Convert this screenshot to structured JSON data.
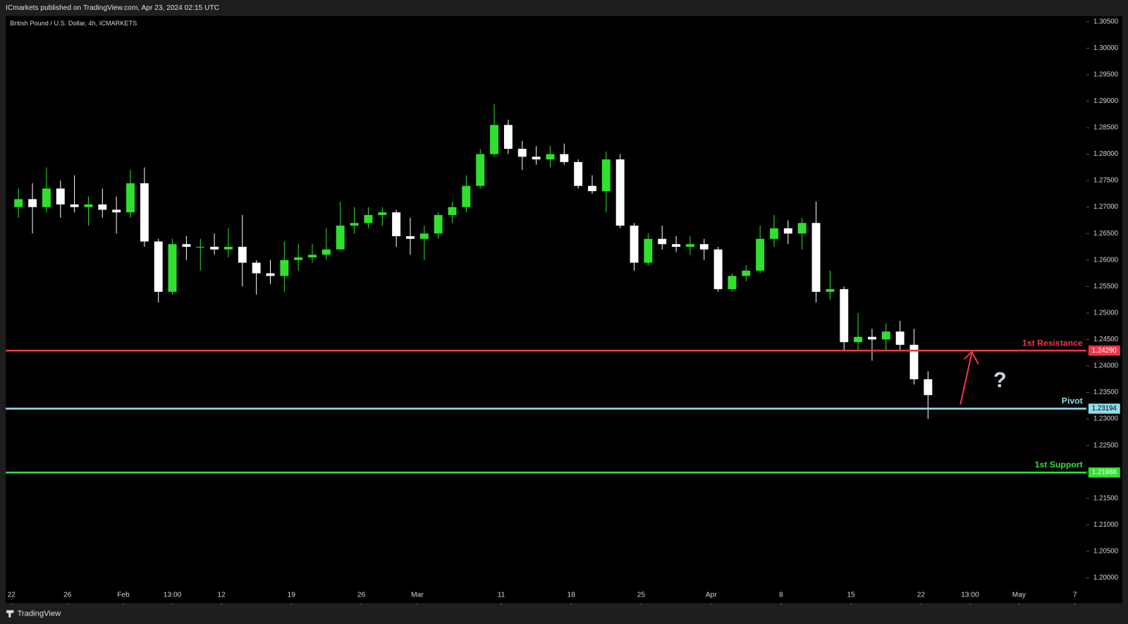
{
  "header": {
    "published": "ICmarkets published on TradingView.com, Apr 23, 2024 02:15 UTC",
    "brand": "TradingView"
  },
  "chart_data": {
    "type": "candlestick",
    "title": "British Pound / U.S. Dollar, 4h, ICMARKETS",
    "up_color": "#2fe02f",
    "down_color": "#ffffff",
    "x": [
      0,
      1,
      2,
      3,
      4,
      5,
      6,
      7,
      8,
      9,
      10,
      11,
      12,
      13,
      14,
      15,
      16,
      17,
      18,
      19,
      20,
      21,
      22,
      23,
      24,
      25,
      26,
      27,
      28,
      29,
      30,
      31,
      32,
      33,
      34,
      35,
      36,
      37,
      38,
      39,
      40,
      41,
      42,
      43,
      44,
      45,
      46,
      47,
      48,
      49,
      50,
      51,
      52,
      53,
      54,
      55,
      56,
      57,
      58,
      59,
      60,
      61,
      62,
      63,
      64,
      65
    ],
    "open": [
      1.27,
      1.2715,
      1.27,
      1.2735,
      1.2705,
      1.27,
      1.2705,
      1.2695,
      1.269,
      1.2745,
      1.2635,
      1.254,
      1.263,
      1.2625,
      1.2625,
      1.262,
      1.2625,
      1.2595,
      1.2575,
      1.257,
      1.26,
      1.2605,
      1.261,
      1.262,
      1.2665,
      1.267,
      1.2685,
      1.269,
      1.2645,
      1.264,
      1.265,
      1.2685,
      1.27,
      1.274,
      1.28,
      1.2855,
      1.281,
      1.2795,
      1.279,
      1.28,
      1.2785,
      1.274,
      1.273,
      1.279,
      1.2665,
      1.2595,
      1.264,
      1.263,
      1.2625,
      1.263,
      1.262,
      1.2545,
      1.257,
      1.258,
      1.264,
      1.266,
      1.265,
      1.267,
      1.254,
      1.2545,
      1.2445,
      1.2455,
      1.245,
      1.2465,
      1.244,
      1.2375
    ],
    "high": [
      1.2735,
      1.2745,
      1.2775,
      1.275,
      1.276,
      1.272,
      1.2735,
      1.272,
      1.277,
      1.2775,
      1.264,
      1.264,
      1.2645,
      1.264,
      1.265,
      1.266,
      1.2685,
      1.26,
      1.26,
      1.2635,
      1.263,
      1.263,
      1.266,
      1.271,
      1.27,
      1.27,
      1.27,
      1.2695,
      1.268,
      1.2665,
      1.269,
      1.271,
      1.276,
      1.281,
      1.2895,
      1.2865,
      1.2825,
      1.2815,
      1.2815,
      1.282,
      1.279,
      1.276,
      1.2805,
      1.28,
      1.267,
      1.265,
      1.2665,
      1.2645,
      1.2645,
      1.264,
      1.2625,
      1.2575,
      1.259,
      1.2665,
      1.2685,
      1.2675,
      1.268,
      1.271,
      1.258,
      1.255,
      1.25,
      1.247,
      1.248,
      1.2485,
      1.247,
      1.239
    ],
    "low": [
      1.268,
      1.265,
      1.269,
      1.268,
      1.269,
      1.2665,
      1.268,
      1.265,
      1.268,
      1.2625,
      1.252,
      1.2535,
      1.26,
      1.258,
      1.261,
      1.2605,
      1.255,
      1.2535,
      1.2555,
      1.254,
      1.258,
      1.2595,
      1.26,
      1.262,
      1.265,
      1.266,
      1.2665,
      1.2625,
      1.261,
      1.26,
      1.264,
      1.267,
      1.269,
      1.2735,
      1.2795,
      1.28,
      1.277,
      1.278,
      1.2775,
      1.278,
      1.2735,
      1.2725,
      1.269,
      1.266,
      1.258,
      1.259,
      1.262,
      1.2615,
      1.261,
      1.26,
      1.254,
      1.254,
      1.256,
      1.2575,
      1.2625,
      1.263,
      1.262,
      1.252,
      1.2525,
      1.243,
      1.243,
      1.241,
      1.243,
      1.243,
      1.2365,
      1.23
    ],
    "close": [
      1.2715,
      1.27,
      1.2735,
      1.2705,
      1.27,
      1.2705,
      1.2695,
      1.269,
      1.2745,
      1.2635,
      1.254,
      1.263,
      1.2625,
      1.2625,
      1.262,
      1.2625,
      1.2595,
      1.2575,
      1.257,
      1.26,
      1.2605,
      1.261,
      1.262,
      1.2665,
      1.267,
      1.2685,
      1.269,
      1.2645,
      1.264,
      1.265,
      1.2685,
      1.27,
      1.274,
      1.28,
      1.2855,
      1.281,
      1.2795,
      1.279,
      1.28,
      1.2785,
      1.274,
      1.273,
      1.279,
      1.2665,
      1.2595,
      1.264,
      1.263,
      1.2625,
      1.263,
      1.262,
      1.2545,
      1.257,
      1.258,
      1.264,
      1.266,
      1.265,
      1.267,
      1.254,
      1.2545,
      1.2445,
      1.2455,
      1.245,
      1.2465,
      1.244,
      1.2375,
      1.2345
    ],
    "xlim": [
      -0.41,
      76.81
    ],
    "xticks": [
      {
        "value": 0,
        "label": "22"
      },
      {
        "value": 4,
        "label": "26"
      },
      {
        "value": 8,
        "label": "Feb"
      },
      {
        "value": 11.5,
        "label": "13:00"
      },
      {
        "value": 15,
        "label": "12"
      },
      {
        "value": 20,
        "label": "19"
      },
      {
        "value": 25,
        "label": "26"
      },
      {
        "value": 29,
        "label": "Mar"
      },
      {
        "value": 35,
        "label": "11"
      },
      {
        "value": 40,
        "label": "18"
      },
      {
        "value": 45,
        "label": "25"
      },
      {
        "value": 50,
        "label": "Apr"
      },
      {
        "value": 55,
        "label": "8"
      },
      {
        "value": 60,
        "label": "15"
      },
      {
        "value": 65,
        "label": "22"
      },
      {
        "value": 68.5,
        "label": "13:00"
      },
      {
        "value": 72,
        "label": "May"
      },
      {
        "value": 76,
        "label": "7"
      }
    ],
    "ylim": [
      1.19524,
      1.30609
    ],
    "yticks": [
      {
        "value": 1.2,
        "label": "1.20000"
      },
      {
        "value": 1.205,
        "label": "1.20500"
      },
      {
        "value": 1.21,
        "label": "1.21000"
      },
      {
        "value": 1.215,
        "label": "1.21500"
      },
      {
        "value": 1.22,
        "label": "1.22000"
      },
      {
        "value": 1.225,
        "label": "1.22500"
      },
      {
        "value": 1.23,
        "label": "1.23000"
      },
      {
        "value": 1.235,
        "label": "1.23500"
      },
      {
        "value": 1.24,
        "label": "1.24000"
      },
      {
        "value": 1.245,
        "label": "1.24500"
      },
      {
        "value": 1.25,
        "label": "1.25000"
      },
      {
        "value": 1.255,
        "label": "1.25500"
      },
      {
        "value": 1.26,
        "label": "1.26000"
      },
      {
        "value": 1.265,
        "label": "1.26500"
      },
      {
        "value": 1.27,
        "label": "1.27000"
      },
      {
        "value": 1.275,
        "label": "1.27500"
      },
      {
        "value": 1.28,
        "label": "1.28000"
      },
      {
        "value": 1.285,
        "label": "1.28500"
      },
      {
        "value": 1.29,
        "label": "1.29000"
      },
      {
        "value": 1.295,
        "label": "1.29500"
      },
      {
        "value": 1.3,
        "label": "1.30000"
      },
      {
        "value": 1.305,
        "label": "1.30500"
      }
    ],
    "levels": {
      "names": [
        "1st Resistance",
        "Pivot",
        "1st Support"
      ],
      "values": [
        1.2429,
        1.23194,
        1.21988
      ],
      "value_labels": [
        "1.24290",
        "1.23194",
        "1.21988"
      ],
      "colors": [
        "#f2364a",
        "#8fdcec",
        "#33e033"
      ]
    },
    "annotation": "?"
  }
}
